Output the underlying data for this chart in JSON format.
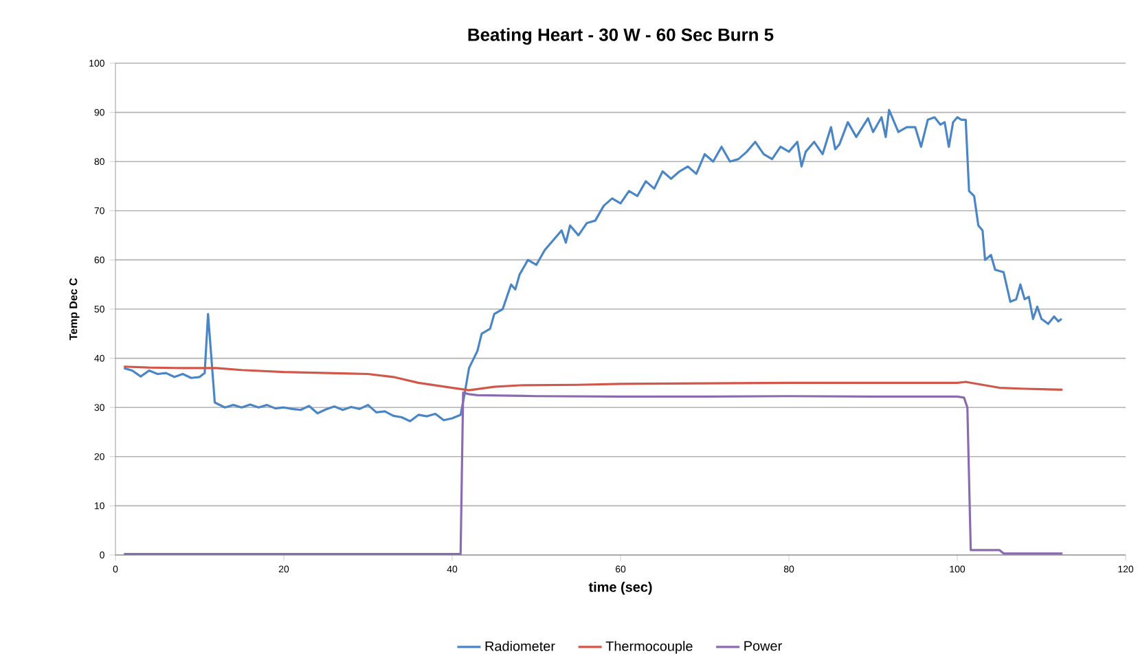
{
  "chart_data": {
    "type": "line",
    "title": "Beating Heart - 30 W - 60 Sec Burn 5",
    "xlabel": "time (sec)",
    "ylabel": "Temp Dec C",
    "xlim": [
      0,
      120
    ],
    "ylim": [
      0,
      100
    ],
    "xticks": [
      0,
      20,
      40,
      60,
      80,
      100,
      120
    ],
    "yticks": [
      0,
      10,
      20,
      30,
      40,
      50,
      60,
      70,
      80,
      90,
      100
    ],
    "grid": "y",
    "legend": "bottom",
    "marker": "none",
    "series": [
      {
        "name": "Radiometer",
        "color": "#4a86c5",
        "x": [
          1,
          2,
          3,
          4,
          5,
          6,
          7,
          8,
          9,
          10,
          10.6,
          11,
          11.4,
          11.8,
          13,
          14,
          15,
          16,
          17,
          18,
          19,
          20,
          21,
          22,
          23,
          24,
          25,
          26,
          27,
          28,
          29,
          30,
          31,
          32,
          33,
          34,
          35,
          36,
          37,
          38,
          39,
          40,
          41,
          41.5,
          42,
          43,
          43.5,
          44.5,
          45,
          46,
          47,
          47.5,
          48,
          49,
          50,
          51,
          52,
          53,
          53.5,
          54,
          55,
          56,
          57,
          58,
          59,
          60,
          61,
          62,
          63,
          64,
          65,
          66,
          67,
          68,
          69,
          70,
          71,
          72,
          73,
          74,
          75,
          76,
          77,
          78,
          79,
          80,
          81,
          81.5,
          82,
          83,
          84,
          85,
          85.5,
          86,
          87,
          88,
          89.4,
          90,
          91,
          91.5,
          91.9,
          93,
          94,
          95,
          95.7,
          96.5,
          97.3,
          98,
          98.5,
          99,
          99.5,
          100,
          100.5,
          101,
          101.4,
          102,
          102.5,
          103,
          103.3,
          104,
          104.5,
          105.5,
          106.3,
          107,
          107.5,
          108,
          108.5,
          109,
          109.5,
          110,
          110.8,
          111.5,
          112,
          112.4
        ],
        "values": [
          38,
          37.5,
          36.3,
          37.5,
          36.8,
          37,
          36.2,
          36.8,
          36,
          36.2,
          37,
          49,
          40,
          31,
          30,
          30.5,
          30,
          30.6,
          30,
          30.5,
          29.8,
          30,
          29.7,
          29.5,
          30.3,
          28.8,
          29.6,
          30.2,
          29.5,
          30.1,
          29.7,
          30.5,
          29,
          29.2,
          28.3,
          28,
          27.2,
          28.5,
          28.2,
          28.7,
          27.4,
          27.8,
          28.5,
          33,
          38,
          41.5,
          45,
          46,
          49,
          50,
          55,
          54,
          57,
          60,
          59,
          62,
          64,
          66,
          63.5,
          67,
          65,
          67.5,
          68,
          71,
          72.5,
          71.5,
          74,
          73,
          76,
          74.5,
          78,
          76.5,
          78,
          79,
          77.5,
          81.5,
          80,
          83,
          80,
          80.5,
          82,
          84,
          81.5,
          80.5,
          83,
          82,
          84,
          79,
          82,
          84,
          81.5,
          87,
          82.5,
          83.5,
          88,
          85,
          88.8,
          86,
          89,
          85,
          90.5,
          86,
          87,
          87,
          83,
          88.5,
          89,
          87.5,
          88,
          83,
          88,
          89,
          88.5,
          88.5,
          74,
          73,
          67,
          66,
          60,
          61,
          58,
          57.5,
          51.5,
          52,
          55,
          52,
          52.5,
          48,
          50.5,
          48,
          47,
          48.5,
          47.5,
          48
        ]
      },
      {
        "name": "Thermocouple",
        "color": "#d0574a",
        "x": [
          1,
          4,
          8,
          12,
          15,
          20,
          25,
          30,
          33,
          36,
          40,
          42,
          45,
          48,
          55,
          60,
          70,
          80,
          90,
          100,
          101,
          103,
          105,
          108,
          110,
          112.5
        ],
        "values": [
          38.3,
          38.1,
          38,
          38,
          37.6,
          37.2,
          37,
          36.8,
          36.2,
          35,
          34,
          33.5,
          34.2,
          34.5,
          34.6,
          34.8,
          34.9,
          35,
          35,
          35,
          35.2,
          34.6,
          34,
          33.8,
          33.7,
          33.6
        ]
      },
      {
        "name": "Power",
        "color": "#8a6bb0",
        "x": [
          1,
          10,
          20,
          30,
          40,
          41,
          41.3,
          42,
          43,
          50,
          60,
          70,
          80,
          90,
          100,
          100.8,
          101.2,
          101.6,
          103,
          105,
          105.5,
          108,
          112.5
        ],
        "values": [
          0.2,
          0.2,
          0.2,
          0.2,
          0.2,
          0.2,
          33,
          32.7,
          32.5,
          32.3,
          32.2,
          32.2,
          32.3,
          32.2,
          32.2,
          32,
          30,
          1,
          1,
          1,
          0.3,
          0.3,
          0.3
        ]
      }
    ]
  }
}
